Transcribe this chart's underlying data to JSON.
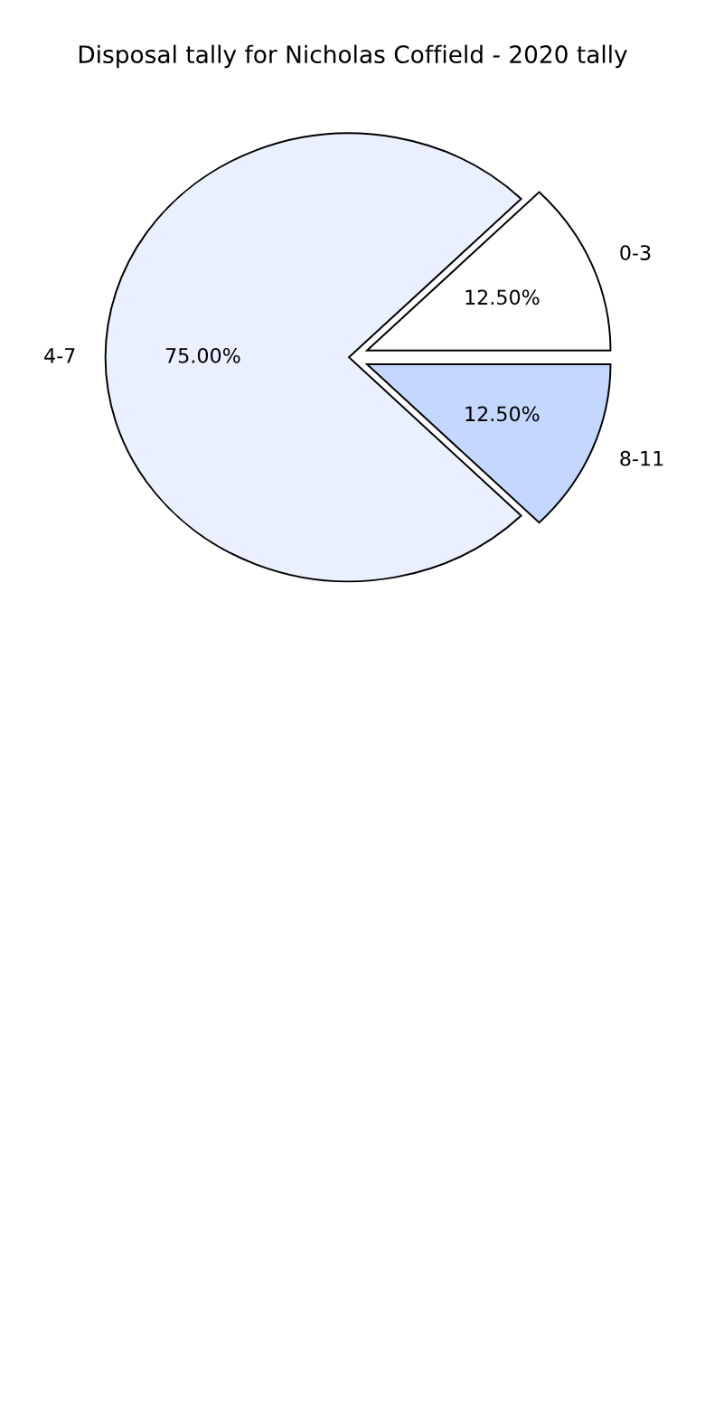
{
  "chart_data": {
    "type": "pie",
    "title": "Disposal tally for Nicholas Coffield - 2020 tally",
    "categories": [
      "0-3",
      "4-7",
      "8-11"
    ],
    "values": [
      12.5,
      75,
      12.5
    ],
    "value_labels": [
      "12.50%",
      "75.00%",
      "12.50%"
    ],
    "colors": [
      "#ffffff",
      "#eaf0ff",
      "#c4d7ff"
    ],
    "legend": false
  }
}
